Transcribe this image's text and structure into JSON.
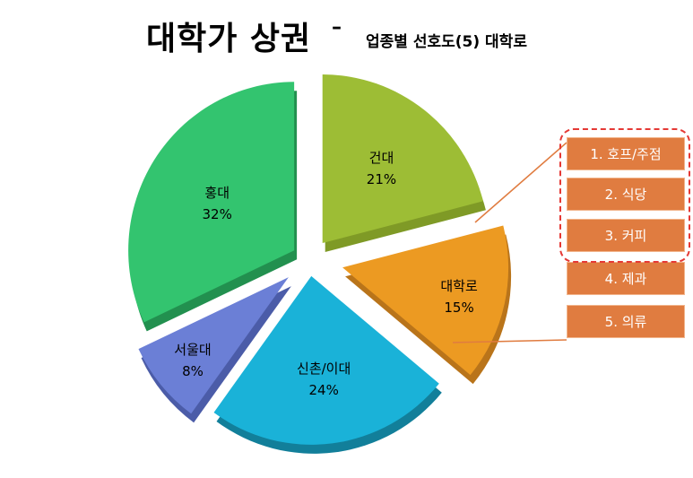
{
  "header": {
    "title": "대학가 상권",
    "dash": "–",
    "subtitle": "업종별 선호도(5) 대학로"
  },
  "chart_data": {
    "type": "pie",
    "slices": [
      {
        "label": "건대",
        "value": 21,
        "value_label": "21%",
        "color": "#9dbd35",
        "side": "#7f9a26"
      },
      {
        "label": "대학로",
        "value": 15,
        "value_label": "15%",
        "color": "#ec9a22",
        "side": "#b9741a"
      },
      {
        "label": "신촌/이대",
        "value": 24,
        "value_label": "24%",
        "color": "#1ab2d8",
        "side": "#127f9a"
      },
      {
        "label": "서울대",
        "value": 8,
        "value_label": "8%",
        "color": "#6b7fd6",
        "side": "#4b5ca8"
      },
      {
        "label": "홍대",
        "value": 32,
        "value_label": "32%",
        "color": "#33c46f",
        "side": "#22904f"
      }
    ]
  },
  "ranking": {
    "items": [
      "1. 호프/주점",
      "2. 식당",
      "3. 커피",
      "4. 제과",
      "5. 의류"
    ],
    "highlight_count": 3,
    "box_color": "#e07c40",
    "highlight_color": "#e53935"
  }
}
